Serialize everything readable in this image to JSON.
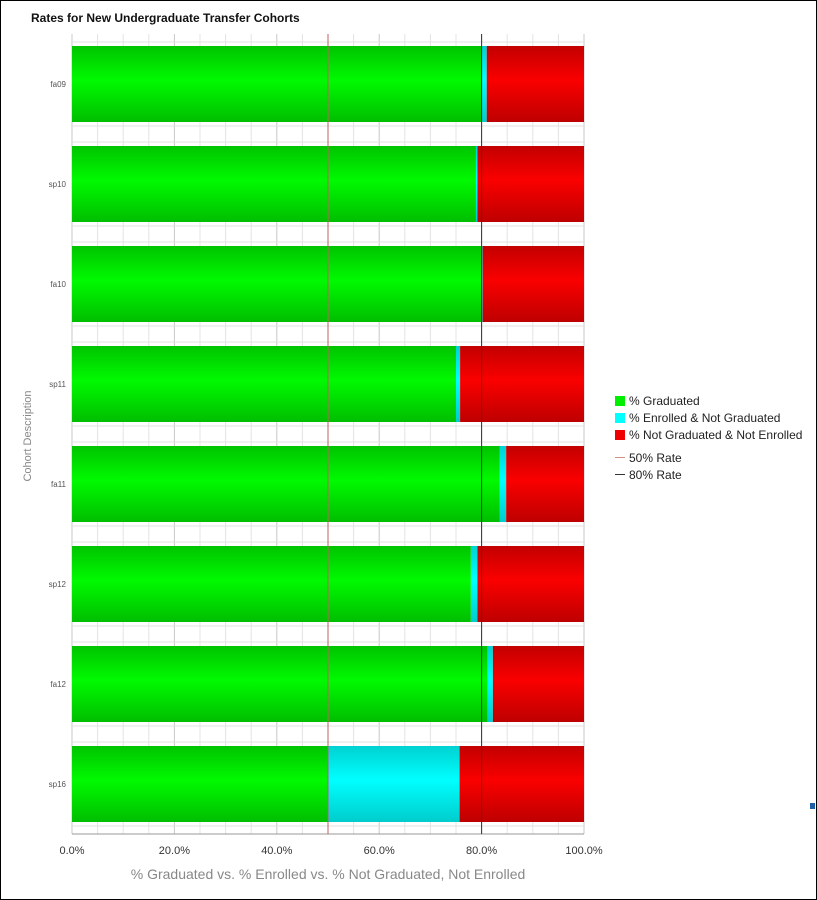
{
  "chart_data": {
    "type": "bar",
    "orientation": "horizontal",
    "stacked": true,
    "title": "Rates for New Undergraduate Transfer Cohorts",
    "xlabel": "% Graduated vs. % Enrolled vs. % Not Graduated, Not Enrolled",
    "ylabel": "Cohort Description",
    "xlim": [
      0,
      100
    ],
    "x_ticks": [
      "0.0%",
      "20.0%",
      "40.0%",
      "60.0%",
      "80.0%",
      "100.0%"
    ],
    "categories": [
      "fa09",
      "sp10",
      "fa10",
      "sp11",
      "fa11",
      "sp12",
      "fa12",
      "sp16"
    ],
    "series": [
      {
        "name": "% Graduated",
        "color": "#00ee00",
        "values": [
          80.0,
          78.9,
          80.0,
          75.0,
          83.5,
          77.9,
          81.2,
          50.0
        ]
      },
      {
        "name": "% Enrolled & Not Graduated",
        "color": "#00ffff",
        "values": [
          1.0,
          0.3,
          0.2,
          0.8,
          1.3,
          1.3,
          1.0,
          25.7
        ]
      },
      {
        "name": "% Not Graduated & Not Enrolled",
        "color": "#ee0000",
        "values": [
          19.0,
          20.8,
          19.8,
          24.2,
          15.2,
          20.8,
          17.8,
          24.3
        ]
      }
    ],
    "reference_lines": [
      {
        "name": "50% Rate",
        "value": 50,
        "color": "#c06060"
      },
      {
        "name": "80% Rate",
        "value": 80,
        "color": "#333333"
      }
    ],
    "grid": true,
    "legend_position": "right"
  },
  "legend": {
    "graduated": "% Graduated",
    "enrolled": "% Enrolled & Not Graduated",
    "not_graduated": "% Not Graduated & Not Enrolled",
    "rate50": "50% Rate",
    "rate80": "80% Rate"
  }
}
